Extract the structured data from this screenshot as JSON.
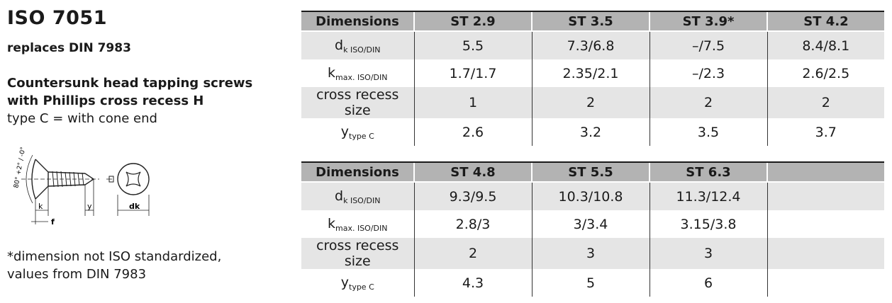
{
  "header": {
    "title": "ISO 7051",
    "subtitle": "replaces DIN 7983"
  },
  "description": {
    "line1": "Countersunk head tapping screws",
    "line2": "with Phillips cross recess H",
    "line3": "type C = with cone end"
  },
  "drawing": {
    "angle_label": "80° +2° / -0°",
    "labels": {
      "k": "k",
      "f": "f",
      "y": "y",
      "dk": "dk"
    }
  },
  "footnote": {
    "line1": "*dimension not ISO standardized,",
    "line2": "values from DIN 7983"
  },
  "rows": {
    "dk": {
      "main": "d",
      "sub": "k ISO/DIN"
    },
    "kmax": {
      "main": "k",
      "sub": "max. ISO/DIN"
    },
    "recess": {
      "main": "cross recess size"
    },
    "y": {
      "main": "y",
      "sub": "type C"
    }
  },
  "table1": {
    "header": "Dimensions",
    "columns": [
      "ST 2.9",
      "ST 3.5",
      "ST 3.9*",
      "ST 4.2"
    ],
    "dk": [
      "5.5",
      "7.3/6.8",
      "–/7.5",
      "8.4/8.1"
    ],
    "kmax": [
      "1.7/1.7",
      "2.35/2.1",
      "–/2.3",
      "2.6/2.5"
    ],
    "recess": [
      "1",
      "2",
      "2",
      "2"
    ],
    "y": [
      "2.6",
      "3.2",
      "3.5",
      "3.7"
    ]
  },
  "table2": {
    "header": "Dimensions",
    "columns": [
      "ST 4.8",
      "ST 5.5",
      "ST 6.3",
      ""
    ],
    "dk": [
      "9.3/9.5",
      "10.3/10.8",
      "11.3/12.4",
      ""
    ],
    "kmax": [
      "2.8/3",
      "3/3.4",
      "3.15/3.8",
      ""
    ],
    "recess": [
      "2",
      "3",
      "3",
      ""
    ],
    "y": [
      "4.3",
      "5",
      "6",
      ""
    ]
  }
}
